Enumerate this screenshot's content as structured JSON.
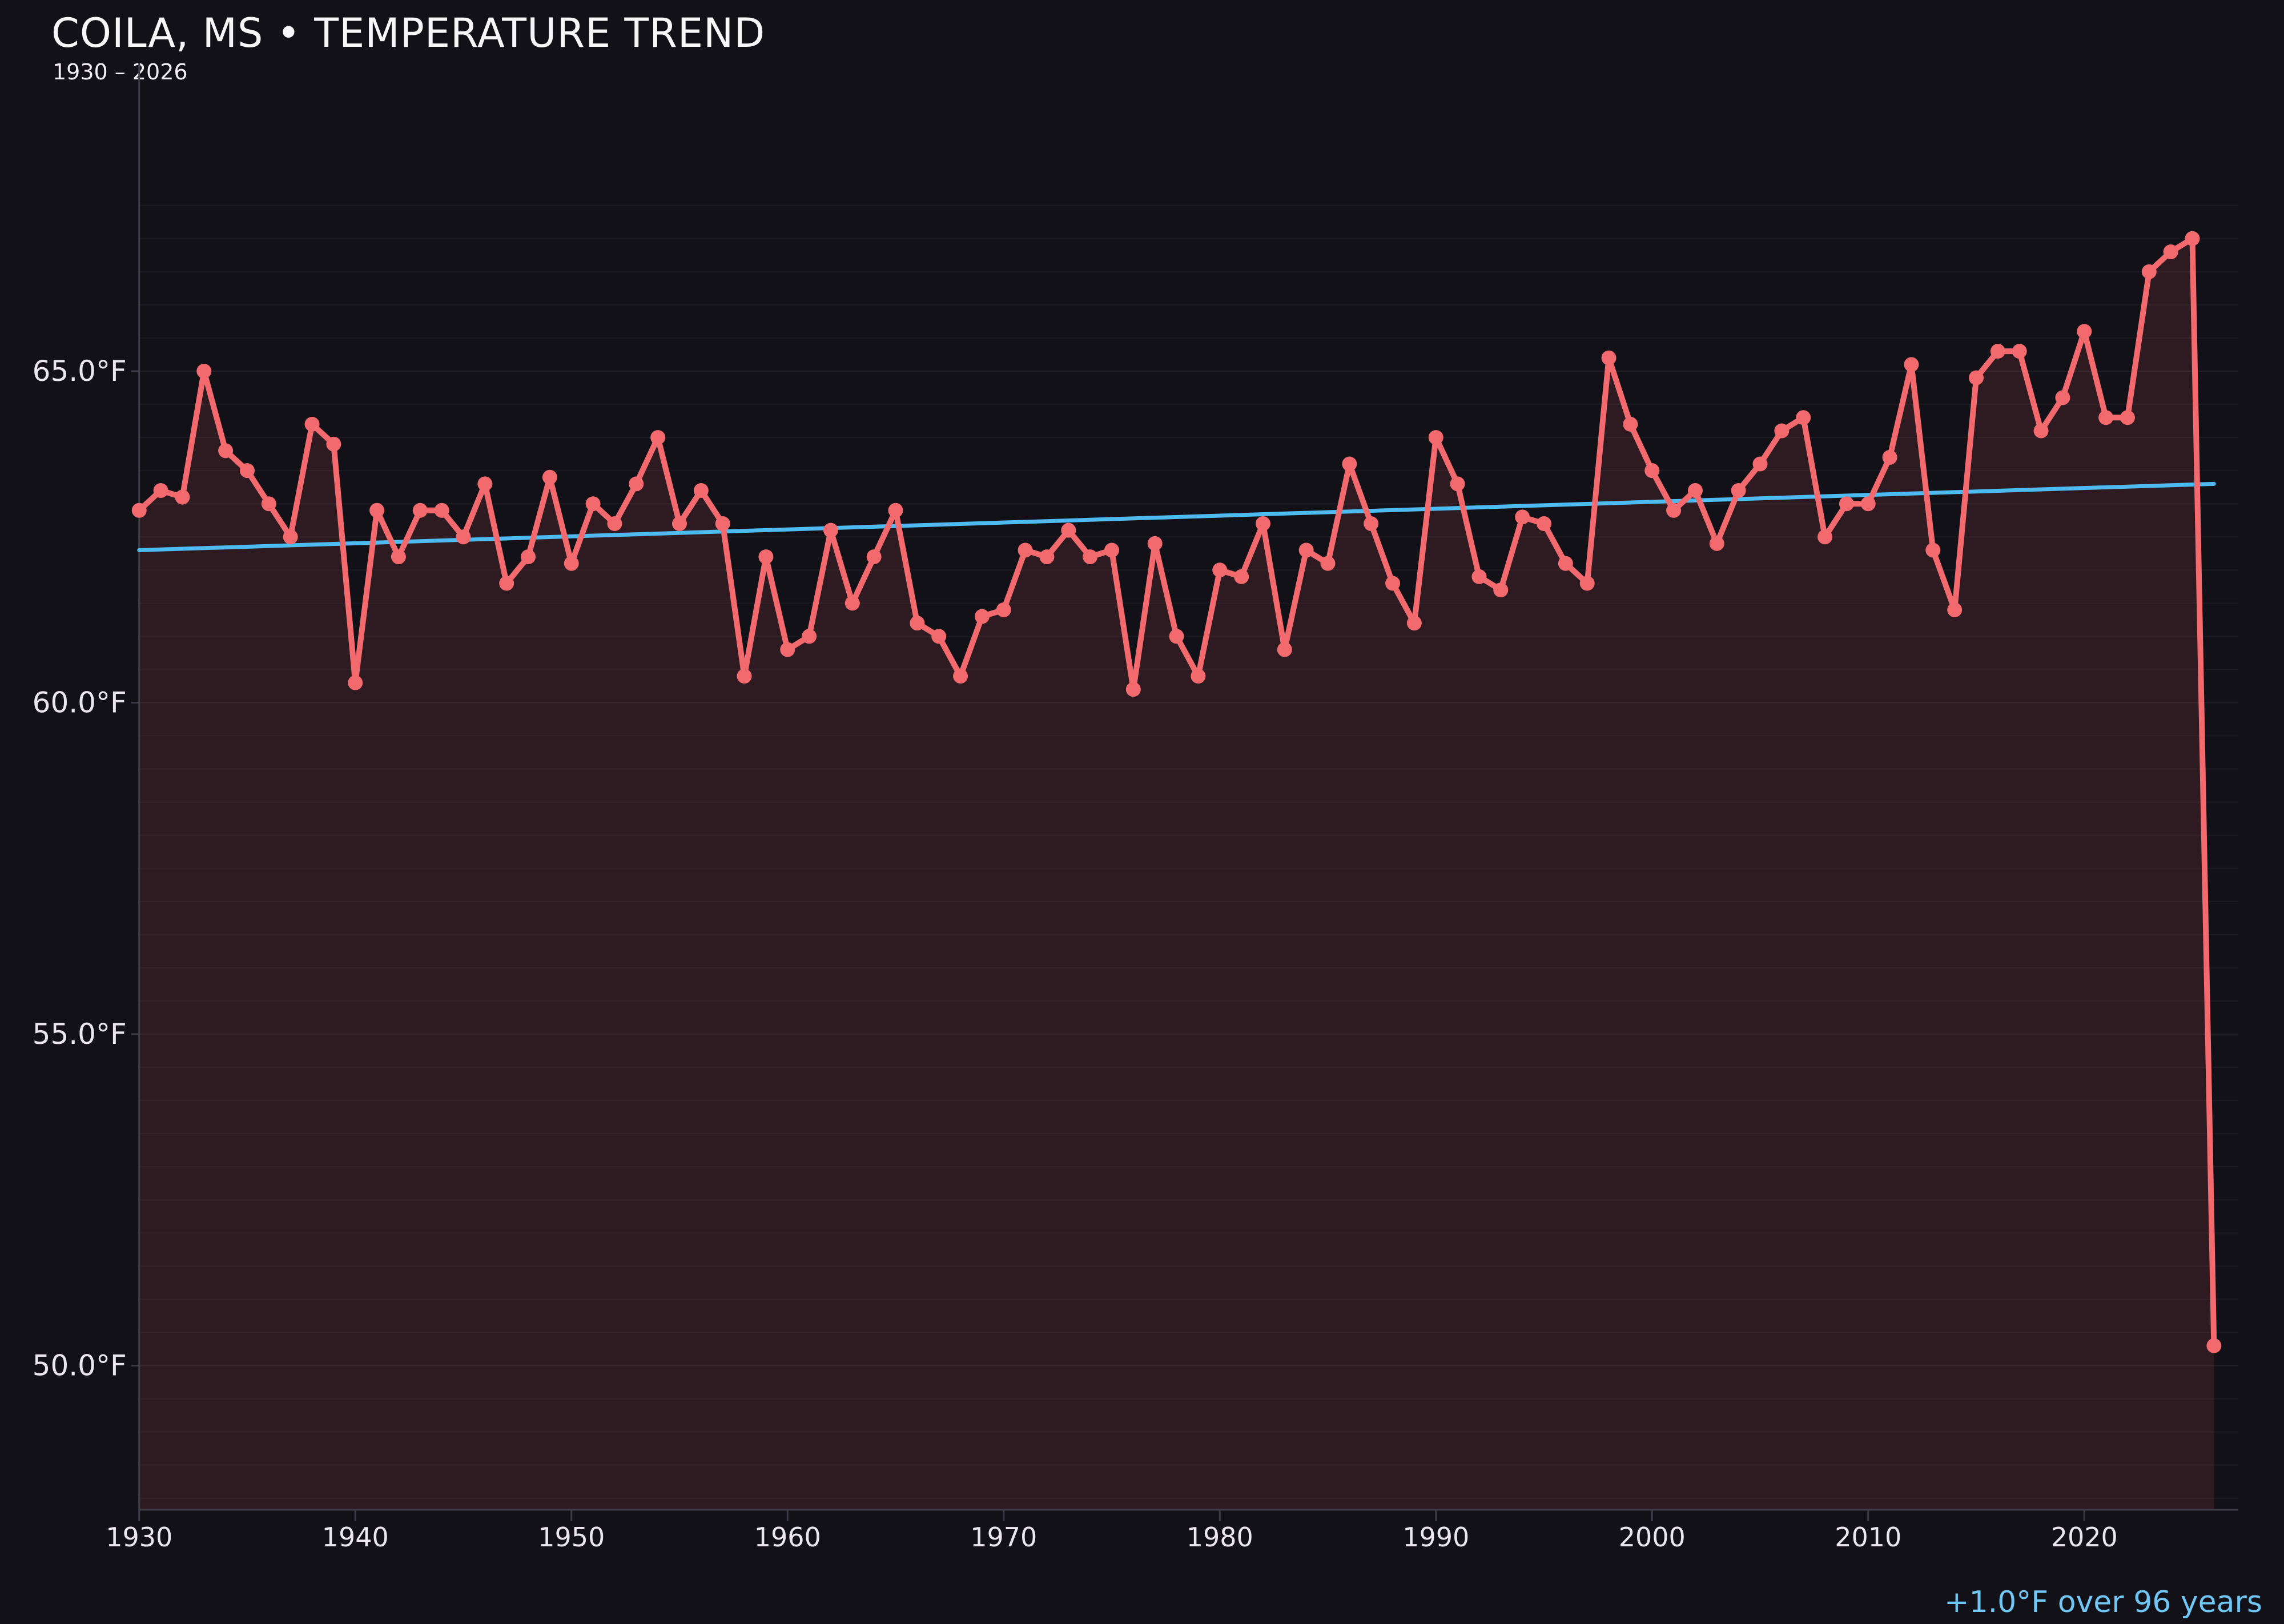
{
  "header": {
    "title": "COILA, MS • TEMPERATURE TREND",
    "subtitle": "1930 – 2026"
  },
  "chart_data": {
    "type": "line",
    "title": "COILA, MS • TEMPERATURE TREND",
    "subtitle": "1930 – 2026",
    "x": [
      1930,
      1931,
      1932,
      1933,
      1934,
      1935,
      1936,
      1937,
      1938,
      1939,
      1940,
      1941,
      1942,
      1943,
      1944,
      1945,
      1946,
      1947,
      1948,
      1949,
      1950,
      1951,
      1952,
      1953,
      1954,
      1955,
      1956,
      1957,
      1958,
      1959,
      1960,
      1961,
      1962,
      1963,
      1964,
      1965,
      1966,
      1967,
      1968,
      1969,
      1970,
      1971,
      1972,
      1973,
      1974,
      1975,
      1976,
      1977,
      1978,
      1979,
      1980,
      1981,
      1982,
      1983,
      1984,
      1985,
      1986,
      1987,
      1988,
      1989,
      1990,
      1991,
      1992,
      1993,
      1994,
      1995,
      1996,
      1997,
      1998,
      1999,
      2000,
      2001,
      2002,
      2003,
      2004,
      2005,
      2006,
      2007,
      2008,
      2009,
      2010,
      2011,
      2012,
      2013,
      2014,
      2015,
      2016,
      2017,
      2018,
      2019,
      2020,
      2021,
      2022,
      2023,
      2024,
      2025,
      2026
    ],
    "series": [
      {
        "name": "annual-mean-temperature",
        "unit": "°F",
        "values": [
          62.9,
          63.2,
          63.1,
          65.0,
          63.8,
          63.5,
          63.0,
          62.5,
          64.2,
          63.9,
          60.3,
          62.9,
          62.2,
          62.9,
          62.9,
          62.5,
          63.3,
          61.8,
          62.2,
          63.4,
          62.1,
          63.0,
          62.7,
          63.3,
          64.0,
          62.7,
          63.2,
          62.7,
          60.4,
          62.2,
          60.8,
          61.0,
          62.6,
          61.5,
          62.2,
          62.9,
          61.2,
          61.0,
          60.4,
          61.3,
          61.4,
          62.3,
          62.2,
          62.6,
          62.2,
          62.3,
          60.2,
          62.4,
          61.0,
          60.4,
          62.0,
          61.9,
          62.7,
          60.8,
          62.3,
          62.1,
          63.6,
          62.7,
          61.8,
          61.2,
          64.0,
          63.3,
          61.9,
          61.7,
          62.8,
          62.7,
          62.1,
          61.8,
          65.2,
          64.2,
          63.5,
          62.9,
          63.2,
          62.4,
          63.2,
          63.6,
          64.1,
          64.3,
          62.5,
          63.0,
          63.0,
          63.7,
          65.1,
          62.3,
          61.4,
          64.9,
          65.3,
          65.3,
          64.1,
          64.6,
          65.6,
          64.3,
          64.3,
          66.5,
          66.8,
          67.0,
          50.3
        ]
      }
    ],
    "trend_line": {
      "x_start": 1930,
      "value_start": 62.3,
      "x_end": 2026,
      "value_end": 63.3
    },
    "annotation": "+1.0°F over 96 years",
    "yticks": [
      {
        "value": 65.0,
        "label": "65.0°F"
      },
      {
        "value": 60.0,
        "label": "60.0°F"
      },
      {
        "value": 55.0,
        "label": "55.0°F"
      },
      {
        "value": 50.0,
        "label": "50.0°F"
      }
    ],
    "xticks": [
      1930,
      1940,
      1950,
      1960,
      1970,
      1980,
      1990,
      2000,
      2010,
      2020
    ],
    "ylim": [
      47.8,
      69.8
    ],
    "xlim": [
      1930,
      2026
    ],
    "grid": "horizontal every 0.5°F, very faint",
    "legend": "none"
  },
  "colors": {
    "background": "#131118",
    "line": "#f2696e",
    "marker": "#f2696e",
    "area_fill": "rgba(244,106,108,0.12)",
    "trend": "#4dbbf0",
    "annotation_text": "#70c7f5",
    "axis": "#3c3c47",
    "grid_minor": "rgba(255,255,255,0.038)",
    "grid_major": "rgba(255,255,255,0.065)",
    "tick_label": "#eae8ee",
    "title_text": "#f7f6f9"
  }
}
